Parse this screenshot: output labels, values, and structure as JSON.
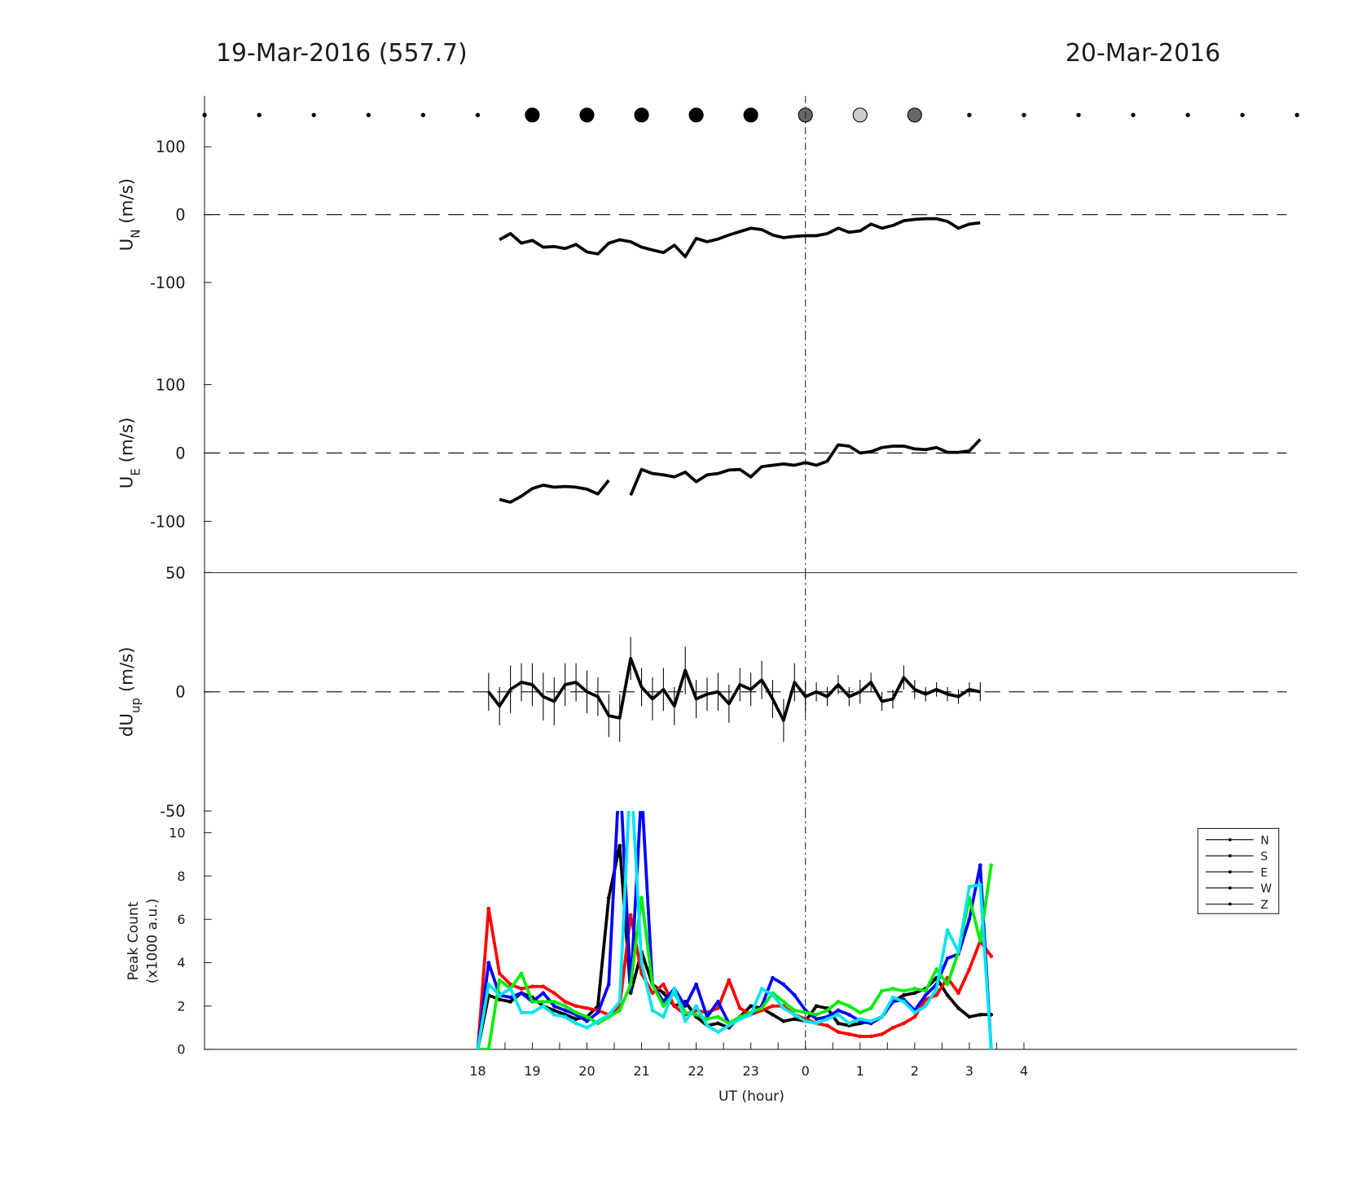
{
  "chart_data": [
    {
      "type": "scatter",
      "title": "19-Mar-2016 (557.7)",
      "title_right": "20-Mar-2016",
      "xlim": [
        13,
        33
      ],
      "x": [
        13,
        14,
        15,
        16,
        17,
        18,
        19,
        20,
        21,
        22,
        23,
        24,
        25,
        26,
        27,
        28,
        29,
        30,
        31,
        32,
        33
      ],
      "sizes": [
        2,
        2,
        2,
        2,
        2,
        2,
        8,
        8,
        8,
        8,
        8,
        8,
        8,
        8,
        2,
        2,
        2,
        2,
        2,
        2,
        2
      ],
      "colors": [
        "#000",
        "#000",
        "#000",
        "#000",
        "#000",
        "#000",
        "#000",
        "#000",
        "#000",
        "#000",
        "#000",
        "#666",
        "#ccc",
        "#666",
        "#000",
        "#000",
        "#000",
        "#000",
        "#000",
        "#000",
        "#000"
      ]
    },
    {
      "type": "line",
      "ylabel": [
        "U",
        "N",
        " (m/s)"
      ],
      "ylabel_style": "subscript",
      "xlim": [
        13,
        33
      ],
      "ylim": [
        -175,
        175
      ],
      "yticks": [
        -100,
        0,
        100
      ],
      "zero_line": true,
      "vline_x": 24,
      "x": [
        18.4,
        18.6,
        18.8,
        19.0,
        19.2,
        19.4,
        19.6,
        19.8,
        20.0,
        20.2,
        20.4,
        20.6,
        20.8,
        21.0,
        21.2,
        21.4,
        21.6,
        21.8,
        22.0,
        22.2,
        22.4,
        22.6,
        22.8,
        23.0,
        23.2,
        23.4,
        23.6,
        23.8,
        24.0,
        24.2,
        24.4,
        24.6,
        24.8,
        25.0,
        25.2,
        25.4,
        25.6,
        25.8,
        26.0,
        26.2,
        26.4,
        26.6,
        26.8,
        27.0,
        27.2
      ],
      "series": [
        {
          "color": "#000",
          "values": [
            -37,
            -28,
            -42,
            -38,
            -48,
            -47,
            -50,
            -44,
            -55,
            -58,
            -42,
            -37,
            -40,
            -48,
            -52,
            -56,
            -45,
            -62,
            -35,
            -40,
            -36,
            -30,
            -25,
            -20,
            -22,
            -30,
            -34,
            -32,
            -31,
            -31,
            -28,
            -20,
            -26,
            -24,
            -14,
            -20,
            -16,
            -9,
            -7,
            -6,
            -6,
            -10,
            -20,
            -14,
            -12
          ]
        }
      ]
    },
    {
      "type": "line",
      "ylabel": [
        "U",
        "E",
        " (m/s)"
      ],
      "ylabel_style": "subscript",
      "xlim": [
        13,
        33
      ],
      "ylim": [
        -175,
        175
      ],
      "yticks": [
        -100,
        0,
        100
      ],
      "zero_line": true,
      "vline_x": 24,
      "x": [
        18.4,
        18.6,
        18.8,
        19.0,
        19.2,
        19.4,
        19.6,
        19.8,
        20.0,
        20.2,
        20.4,
        20.6,
        20.8,
        21.0,
        21.2,
        21.4,
        21.6,
        21.8,
        22.0,
        22.2,
        22.4,
        22.6,
        22.8,
        23.0,
        23.2,
        23.4,
        23.6,
        23.8,
        24.0,
        24.2,
        24.4,
        24.6,
        24.8,
        25.0,
        25.2,
        25.4,
        25.6,
        25.8,
        26.0,
        26.2,
        26.4,
        26.6,
        26.8,
        27.0,
        27.2
      ],
      "series": [
        {
          "color": "#000",
          "values": [
            -68,
            -72,
            -63,
            -52,
            -47,
            -50,
            -49,
            -50,
            -53,
            -60,
            -40,
            null,
            -62,
            -24,
            -30,
            -32,
            -35,
            -28,
            -42,
            -32,
            -30,
            -25,
            -24,
            -35,
            -20,
            -18,
            -16,
            -18,
            -14,
            -18,
            -12,
            12,
            10,
            0,
            2,
            8,
            10,
            10,
            6,
            5,
            8,
            1,
            1,
            3,
            20
          ]
        }
      ]
    },
    {
      "type": "line",
      "ylabel": [
        "dU",
        "up",
        " (m/s)"
      ],
      "ylabel_style": "subscript",
      "xlim": [
        13,
        33
      ],
      "ylim": [
        -50,
        50
      ],
      "yticks": [
        -50,
        0,
        50
      ],
      "zero_line": true,
      "vline_x": 24,
      "top_border": true,
      "x": [
        18.2,
        18.4,
        18.6,
        18.8,
        19.0,
        19.2,
        19.4,
        19.6,
        19.8,
        20.0,
        20.2,
        20.4,
        20.6,
        20.8,
        21.0,
        21.2,
        21.4,
        21.6,
        21.8,
        22.0,
        22.2,
        22.4,
        22.6,
        22.8,
        23.0,
        23.2,
        23.4,
        23.6,
        23.8,
        24.0,
        24.2,
        24.4,
        24.6,
        24.8,
        25.0,
        25.2,
        25.4,
        25.6,
        25.8,
        26.0,
        26.2,
        26.4,
        26.6,
        26.8,
        27.0,
        27.2
      ],
      "series": [
        {
          "color": "#000",
          "values": [
            0,
            -6,
            1,
            4,
            3,
            -2,
            -4,
            3,
            4,
            0,
            -2,
            -10,
            -11,
            14,
            2,
            -3,
            1,
            -6,
            9,
            -3,
            -1,
            0,
            -5,
            3,
            1,
            5,
            -3,
            -12,
            4,
            -2,
            0,
            -2,
            3,
            -2,
            0,
            4,
            -4,
            -3,
            6,
            1,
            -1,
            1,
            -1,
            -2,
            1,
            0
          ],
          "errors": [
            8,
            8,
            10,
            8,
            9,
            10,
            10,
            9,
            8,
            9,
            8,
            9,
            10,
            9,
            8,
            9,
            9,
            8,
            10,
            8,
            7,
            8,
            8,
            7,
            7,
            8,
            8,
            9,
            8,
            7,
            4,
            4,
            4,
            4,
            5,
            4,
            4,
            4,
            5,
            4,
            3,
            3,
            3,
            3,
            3,
            4
          ]
        }
      ]
    },
    {
      "type": "line",
      "ylabel": [
        "Peak Count",
        "(x1000 a.u.)"
      ],
      "ylabel_style": "lines",
      "xlabel": "UT (hour)",
      "xlim": [
        13,
        33
      ],
      "ylim": [
        0,
        11
      ],
      "yticks": [
        0,
        2,
        4,
        6,
        8,
        10
      ],
      "vline_x": 24,
      "markers": true,
      "legend": "right",
      "legend_color": "#000",
      "xticks": [
        18,
        19,
        20,
        21,
        22,
        23,
        {
          "value": 24,
          "label": "0"
        },
        {
          "value": 25,
          "label": "1"
        },
        {
          "value": 26,
          "label": "2"
        },
        {
          "value": 27,
          "label": "3"
        },
        {
          "value": 28,
          "label": "4"
        }
      ],
      "xminorticks": [
        18.5,
        19.5,
        20.5,
        21.5,
        22.5,
        23.5,
        24.5,
        25.5,
        26.5,
        27.5
      ],
      "x": [
        18.0,
        18.2,
        18.4,
        18.6,
        18.8,
        19.0,
        19.2,
        19.4,
        19.6,
        19.8,
        20.0,
        20.2,
        20.4,
        20.6,
        20.8,
        21.0,
        21.2,
        21.4,
        21.6,
        21.8,
        22.0,
        22.2,
        22.4,
        22.6,
        22.8,
        23.0,
        23.2,
        23.4,
        23.6,
        23.8,
        24.0,
        24.2,
        24.4,
        24.6,
        24.8,
        25.0,
        25.2,
        25.4,
        25.6,
        25.8,
        26.0,
        26.2,
        26.4,
        26.6,
        26.8,
        27.0,
        27.2,
        27.4
      ],
      "series": [
        {
          "name": "N",
          "color": "#000000",
          "values": [
            0,
            2.5,
            2.3,
            2.2,
            2.6,
            2.4,
            2.0,
            1.8,
            1.6,
            1.4,
            1.5,
            2.0,
            7.0,
            9.4,
            2.6,
            4.5,
            3.0,
            2.6,
            2.0,
            2.2,
            1.5,
            1.1,
            1.2,
            1.0,
            1.5,
            2.0,
            1.9,
            1.6,
            1.3,
            1.4,
            1.3,
            2.0,
            1.9,
            1.2,
            1.1,
            1.2,
            1.3,
            1.5,
            2.2,
            2.5,
            2.6,
            2.8,
            3.3,
            2.5,
            1.9,
            1.5,
            1.6,
            1.6
          ]
        },
        {
          "name": "S",
          "color": "#ff0000",
          "values": [
            0,
            6.5,
            3.5,
            3.0,
            2.8,
            2.9,
            2.9,
            2.6,
            2.2,
            2.0,
            1.9,
            1.8,
            1.6,
            2.0,
            6.2,
            3.5,
            2.6,
            3.0,
            2.0,
            1.6,
            1.8,
            1.7,
            1.9,
            3.2,
            1.9,
            1.6,
            1.8,
            2.0,
            2.0,
            1.6,
            1.4,
            1.2,
            1.1,
            0.8,
            0.7,
            0.6,
            0.6,
            0.7,
            1.0,
            1.2,
            1.5,
            2.3,
            2.5,
            3.3,
            2.6,
            3.7,
            5.0,
            4.3
          ]
        },
        {
          "name": "E",
          "color": "#0000ff",
          "values": [
            0,
            4.0,
            2.5,
            2.4,
            2.6,
            2.2,
            2.6,
            2.0,
            1.8,
            1.6,
            1.3,
            1.7,
            3.0,
            13,
            2.8,
            12,
            3.0,
            2.2,
            2.8,
            2.0,
            3.0,
            1.5,
            2.2,
            1.2,
            1.5,
            1.6,
            2.0,
            3.3,
            3.0,
            2.5,
            1.8,
            1.4,
            1.5,
            1.8,
            1.6,
            1.3,
            1.2,
            1.5,
            2.2,
            2.3,
            1.8,
            2.5,
            3.0,
            4.2,
            4.4,
            6.0,
            8.5,
            0
          ]
        },
        {
          "name": "W",
          "color": "#00ee00",
          "values": [
            0,
            0,
            3.2,
            2.8,
            3.5,
            2.2,
            2.2,
            2.2,
            2.0,
            1.7,
            1.5,
            1.2,
            1.5,
            1.8,
            3.0,
            7.0,
            3.0,
            2.0,
            2.6,
            1.7,
            1.6,
            1.4,
            1.5,
            1.2,
            1.5,
            1.7,
            1.9,
            2.6,
            2.2,
            1.8,
            1.7,
            1.6,
            1.8,
            2.2,
            2.0,
            1.7,
            1.9,
            2.7,
            2.8,
            2.7,
            2.8,
            2.7,
            3.7,
            3.0,
            4.5,
            7.0,
            5.0,
            8.5
          ]
        },
        {
          "name": "Z",
          "color": "#00e5ee",
          "values": [
            0,
            3.0,
            2.5,
            2.8,
            1.7,
            1.7,
            2.0,
            1.6,
            1.5,
            1.2,
            1.0,
            1.3,
            1.6,
            2.2,
            13,
            4.0,
            1.8,
            1.5,
            2.8,
            1.3,
            2.0,
            1.1,
            0.8,
            1.1,
            1.4,
            1.6,
            2.8,
            2.5,
            1.9,
            1.6,
            1.3,
            1.2,
            1.4,
            1.6,
            1.2,
            1.4,
            1.3,
            1.5,
            2.4,
            2.2,
            1.7,
            2.0,
            2.8,
            5.5,
            4.5,
            7.5,
            7.6,
            0
          ]
        }
      ]
    }
  ]
}
